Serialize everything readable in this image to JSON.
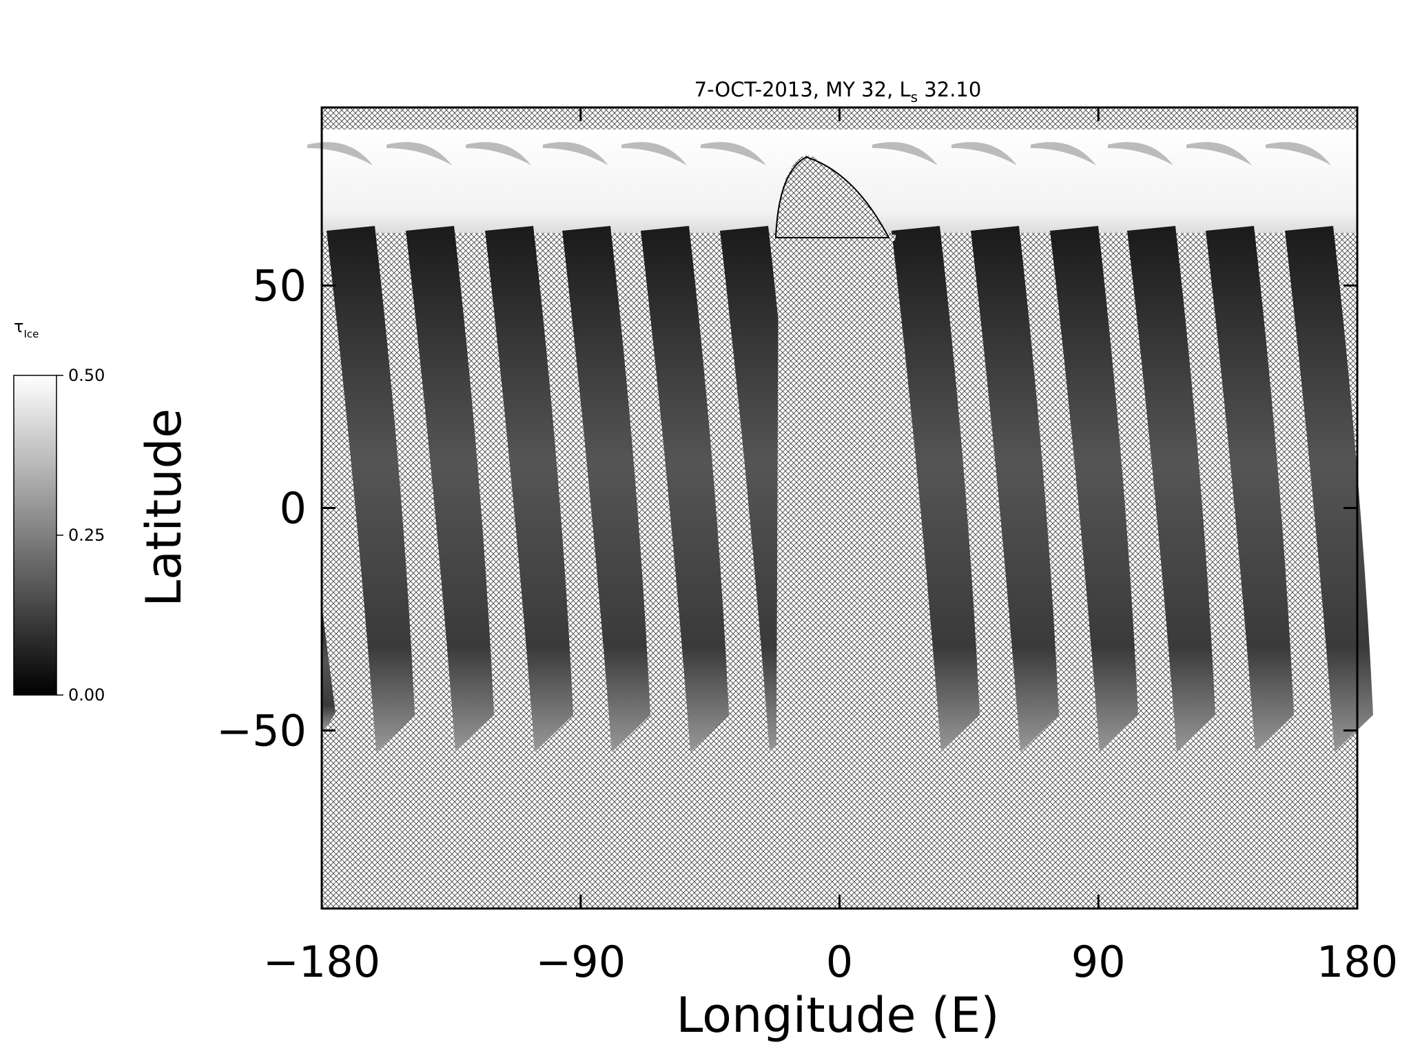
{
  "chart_data": {
    "type": "map",
    "title": [
      "7-OCT-2013, MY 32,  L",
      "s",
      " 32.10"
    ],
    "x_label": "Longitude (E)",
    "y_label": "Latitude",
    "xlim": [
      -180,
      180
    ],
    "xticks": [
      {
        "value": -180,
        "label": "−180"
      },
      {
        "value": -90,
        "label": "−90"
      },
      0,
      90,
      180
    ],
    "ylim": [
      -90,
      90
    ],
    "yticks": [
      {
        "value": -50,
        "label": "−50"
      },
      0,
      50
    ],
    "colorbar": {
      "label": [
        "τ",
        "Ice"
      ],
      "lim": [
        0,
        0.5
      ],
      "colors": [
        "#000000",
        "#ffffff"
      ],
      "ticks": [
        {
          "value": 0,
          "label": "0.00"
        },
        {
          "value": 0.25,
          "label": "0.25"
        },
        {
          "value": 0.5,
          "label": "0.50"
        }
      ]
    }
  }
}
